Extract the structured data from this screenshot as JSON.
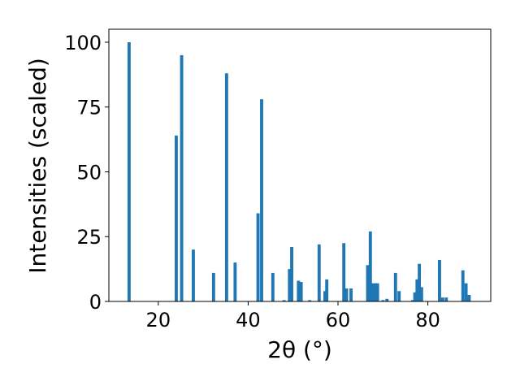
{
  "chart_data": {
    "type": "bar",
    "title": "",
    "xlabel": "2θ (°)",
    "ylabel": "Intensities (scaled)",
    "xlim": [
      9,
      94
    ],
    "ylim": [
      0,
      105
    ],
    "xticks": [
      20,
      40,
      60,
      80
    ],
    "yticks": [
      0,
      25,
      50,
      75,
      100
    ],
    "bar_width": 0.7,
    "grid": false,
    "legend": "none",
    "series": [
      {
        "color": "#1f77b4",
        "x": [
          13.5,
          24.0,
          25.2,
          27.8,
          32.3,
          35.2,
          37.1,
          42.2,
          43.0,
          45.5,
          48.0,
          49.2,
          49.7,
          51.2,
          51.8,
          53.7,
          55.8,
          57.1,
          57.5,
          61.3,
          61.9,
          62.9,
          66.6,
          67.2,
          67.7,
          68.3,
          68.8,
          70.0,
          70.9,
          72.8,
          73.6,
          76.6,
          77.1,
          77.6,
          78.1,
          78.6,
          82.6,
          83.3,
          84.1,
          87.8,
          88.5,
          89.2
        ],
        "values": [
          100,
          64,
          95,
          20,
          11,
          88,
          15,
          34,
          78,
          11,
          0.5,
          12.5,
          21,
          8,
          7.5,
          0.5,
          22,
          4,
          8.5,
          22.5,
          5,
          5,
          14,
          27,
          7,
          7,
          7,
          0.5,
          1,
          11,
          4,
          0.5,
          3.5,
          8.5,
          14.5,
          5.5,
          16,
          1.5,
          1.5,
          12,
          7,
          2.5
        ]
      }
    ]
  }
}
